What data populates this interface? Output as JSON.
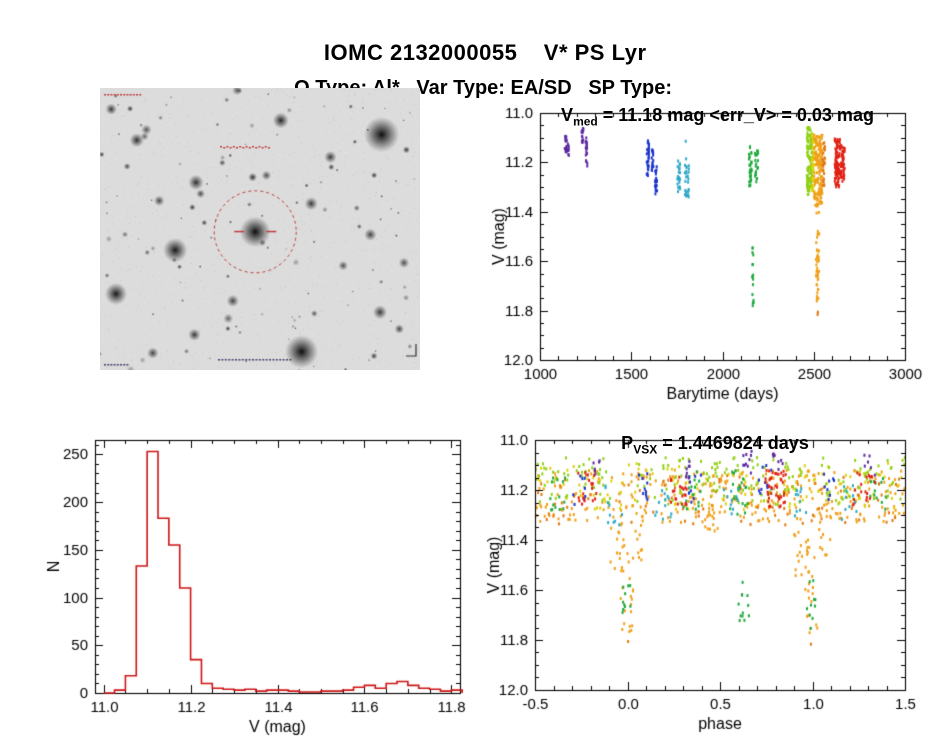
{
  "header": {
    "title": "IOMC 2132000055    V* PS Lyr",
    "subtitle": "O Type: Al*   Var Type: EA/SD   SP Type:"
  },
  "starfield": {
    "description": "Inverted grayscale finding-chart image with target star circled",
    "target_circle_color": "#c23b3b"
  },
  "chart_data": [
    {
      "id": "lightcurve",
      "type": "scatter",
      "title": {
        "pre": "V",
        "sub": "med",
        "post": " = 11.18 mag <err_V> = 0.03 mag"
      },
      "xlabel": "Barytime (days)",
      "ylabel": "V (mag)",
      "xlim": [
        1000,
        3000
      ],
      "ylim": [
        11.0,
        12.0
      ],
      "y_axis_inverted": true,
      "xticks": [
        1000,
        1500,
        2000,
        2500,
        3000
      ],
      "xtick_labels": [
        "1000",
        "1500",
        "2000",
        "2500",
        "3000"
      ],
      "yticks": [
        11.0,
        11.2,
        11.4,
        11.6,
        11.8,
        12.0
      ],
      "ytick_labels": [
        "11.0",
        "11.2",
        "11.4",
        "11.6",
        "11.8",
        "12.0"
      ],
      "clusters": [
        {
          "color": "#5c28a0",
          "x": [
            1135,
            1147
          ],
          "y": [
            11.09,
            11.16
          ],
          "n": 16
        },
        {
          "color": "#5c28a0",
          "x": [
            1152,
            1158
          ],
          "y": [
            11.12,
            11.18
          ],
          "n": 8
        },
        {
          "color": "#5c28a0",
          "x": [
            1228,
            1238
          ],
          "y": [
            11.05,
            11.12
          ],
          "n": 14
        },
        {
          "color": "#5c28a0",
          "x": [
            1250,
            1260
          ],
          "y": [
            11.1,
            11.22
          ],
          "n": 18
        },
        {
          "color": "#1c34cc",
          "x": [
            1585,
            1597
          ],
          "y": [
            11.11,
            11.26
          ],
          "n": 30
        },
        {
          "color": "#1c34cc",
          "x": [
            1612,
            1622
          ],
          "y": [
            11.15,
            11.25
          ],
          "n": 16
        },
        {
          "color": "#1c34cc",
          "x": [
            1630,
            1642
          ],
          "y": [
            11.21,
            11.33
          ],
          "n": 20
        },
        {
          "color": "#2fa8c8",
          "x": [
            1752,
            1768
          ],
          "y": [
            11.19,
            11.32
          ],
          "n": 24
        },
        {
          "color": "#2fa8c8",
          "x": [
            1793,
            1803
          ],
          "y": [
            11.09,
            11.36
          ],
          "n": 16
        },
        {
          "color": "#2fa8c8",
          "x": [
            1808,
            1818
          ],
          "y": [
            11.21,
            11.34
          ],
          "n": 12
        },
        {
          "color": "#1fa83c",
          "x": [
            2145,
            2160
          ],
          "y": [
            11.13,
            11.3
          ],
          "n": 30
        },
        {
          "color": "#1fa83c",
          "x": [
            2163,
            2171
          ],
          "y": [
            11.54,
            11.8
          ],
          "n": 16
        },
        {
          "color": "#1fa83c",
          "x": [
            2178,
            2195
          ],
          "y": [
            11.15,
            11.28
          ],
          "n": 20
        },
        {
          "color": "#8fd014",
          "x": [
            2462,
            2478
          ],
          "y": [
            11.05,
            11.33
          ],
          "n": 70
        },
        {
          "color": "#8fd014",
          "x": [
            2480,
            2492
          ],
          "y": [
            11.07,
            11.3
          ],
          "n": 55
        },
        {
          "color": "#ddd00e",
          "x": [
            2490,
            2502
          ],
          "y": [
            11.08,
            11.32
          ],
          "n": 45
        },
        {
          "color": "#f0a018",
          "x": [
            2502,
            2548
          ],
          "y": [
            11.09,
            11.38
          ],
          "n": 150
        },
        {
          "color": "#f0a018",
          "x": [
            2512,
            2530
          ],
          "y": [
            11.38,
            11.7
          ],
          "n": 32
        },
        {
          "color": "#f0a018",
          "x": [
            2516,
            2526
          ],
          "y": [
            11.7,
            11.8
          ],
          "n": 8
        },
        {
          "color": "#e07812",
          "x": [
            2548,
            2562
          ],
          "y": [
            11.11,
            11.3
          ],
          "n": 28
        },
        {
          "color": "#e07812",
          "x": [
            2520,
            2523
          ],
          "y": [
            11.8,
            11.83
          ],
          "n": 2
        },
        {
          "color": "#e02014",
          "x": [
            2615,
            2645
          ],
          "y": [
            11.1,
            11.3
          ],
          "n": 80
        },
        {
          "color": "#e02014",
          "x": [
            2648,
            2670
          ],
          "y": [
            11.13,
            11.28
          ],
          "n": 45
        }
      ]
    },
    {
      "id": "histogram",
      "type": "bar",
      "xlabel": "V (mag)",
      "ylabel": "N",
      "xlim": [
        10.98,
        11.82
      ],
      "ylim": [
        0,
        265
      ],
      "xticks": [
        11.0,
        11.2,
        11.4,
        11.6,
        11.8
      ],
      "xtick_labels": [
        "11.0",
        "11.2",
        "11.4",
        "11.6",
        "11.8"
      ],
      "yticks": [
        0,
        50,
        100,
        150,
        200,
        250
      ],
      "ytick_labels": [
        "0",
        "50",
        "100",
        "150",
        "200",
        "250"
      ],
      "bin_start": 11.0,
      "bin_width": 0.025,
      "counts": [
        0,
        3,
        18,
        133,
        253,
        183,
        155,
        110,
        35,
        10,
        5,
        4,
        3,
        4,
        2,
        3,
        3,
        2,
        1,
        1,
        2,
        2,
        3,
        6,
        8,
        5,
        10,
        12,
        8,
        5,
        4,
        2,
        3
      ],
      "color": "#cc1414"
    },
    {
      "id": "phase",
      "type": "scatter",
      "title": {
        "pre": "P",
        "sub": "VSX",
        "post": " = 1.4469824 days"
      },
      "xlabel": "phase",
      "ylabel": "V (mag)",
      "xlim": [
        -0.5,
        1.5
      ],
      "ylim": [
        11.0,
        12.0
      ],
      "y_axis_inverted": true,
      "xticks": [
        -0.5,
        0.0,
        0.5,
        1.0,
        1.5
      ],
      "xtick_labels": [
        "-0.5",
        "0.0",
        "0.5",
        "1.0",
        "1.5"
      ],
      "yticks": [
        11.0,
        11.2,
        11.4,
        11.6,
        11.8,
        12.0
      ],
      "ytick_labels": [
        "11.0",
        "11.2",
        "11.4",
        "11.6",
        "11.8",
        "12.0"
      ],
      "clusters": [
        {
          "color": "#f0a018",
          "x": [
            -0.5,
            1.5
          ],
          "y": [
            11.12,
            11.33
          ],
          "n": 280
        },
        {
          "color": "#e07812",
          "x": [
            -0.5,
            1.5
          ],
          "y": [
            11.14,
            11.34
          ],
          "n": 90
        },
        {
          "color": "#ddd00e",
          "x": [
            -0.5,
            1.5
          ],
          "y": [
            11.09,
            11.28
          ],
          "n": 130
        },
        {
          "color": "#8fd014",
          "x": [
            -0.5,
            -0.05
          ],
          "y": [
            11.07,
            11.26
          ],
          "n": 45
        },
        {
          "color": "#8fd014",
          "x": [
            0.05,
            0.5
          ],
          "y": [
            11.07,
            11.26
          ],
          "n": 50
        },
        {
          "color": "#8fd014",
          "x": [
            0.5,
            0.95
          ],
          "y": [
            11.07,
            11.26
          ],
          "n": 50
        },
        {
          "color": "#8fd014",
          "x": [
            1.05,
            1.5
          ],
          "y": [
            11.07,
            11.26
          ],
          "n": 45
        },
        {
          "color": "#f0a018",
          "x": [
            -0.1,
            -0.02
          ],
          "y": [
            11.3,
            11.55
          ],
          "n": 16
        },
        {
          "color": "#f0a018",
          "x": [
            -0.04,
            0.03
          ],
          "y": [
            11.42,
            11.8
          ],
          "n": 20
        },
        {
          "color": "#f0a018",
          "x": [
            0.03,
            0.1
          ],
          "y": [
            11.3,
            11.48
          ],
          "n": 12
        },
        {
          "color": "#f0a018",
          "x": [
            0.9,
            0.98
          ],
          "y": [
            11.3,
            11.55
          ],
          "n": 16
        },
        {
          "color": "#f0a018",
          "x": [
            0.96,
            1.03
          ],
          "y": [
            11.42,
            11.8
          ],
          "n": 20
        },
        {
          "color": "#f0a018",
          "x": [
            1.03,
            1.1
          ],
          "y": [
            11.3,
            11.48
          ],
          "n": 12
        },
        {
          "color": "#f0a018",
          "x": [
            0.42,
            0.52
          ],
          "y": [
            11.26,
            11.38
          ],
          "n": 14
        },
        {
          "color": "#1fa83c",
          "x": [
            -0.42,
            -0.33
          ],
          "y": [
            11.13,
            11.28
          ],
          "n": 14
        },
        {
          "color": "#1fa83c",
          "x": [
            0.3,
            0.4
          ],
          "y": [
            11.12,
            11.28
          ],
          "n": 16
        },
        {
          "color": "#1fa83c",
          "x": [
            0.55,
            0.66
          ],
          "y": [
            11.12,
            11.3
          ],
          "n": 18
        },
        {
          "color": "#1fa83c",
          "x": [
            0.6,
            0.66
          ],
          "y": [
            11.45,
            11.76
          ],
          "n": 12
        },
        {
          "color": "#1fa83c",
          "x": [
            -0.03,
            0.02
          ],
          "y": [
            11.55,
            11.78
          ],
          "n": 10
        },
        {
          "color": "#1fa83c",
          "x": [
            0.97,
            1.02
          ],
          "y": [
            11.55,
            11.78
          ],
          "n": 10
        },
        {
          "color": "#1fa83c",
          "x": [
            1.3,
            1.4
          ],
          "y": [
            11.12,
            11.28
          ],
          "n": 12
        },
        {
          "color": "#2fa8c8",
          "x": [
            -0.12,
            -0.02
          ],
          "y": [
            11.18,
            11.34
          ],
          "n": 10
        },
        {
          "color": "#2fa8c8",
          "x": [
            0.15,
            0.25
          ],
          "y": [
            11.18,
            11.32
          ],
          "n": 12
        },
        {
          "color": "#2fa8c8",
          "x": [
            0.52,
            0.6
          ],
          "y": [
            11.16,
            11.3
          ],
          "n": 10
        },
        {
          "color": "#2fa8c8",
          "x": [
            0.88,
            0.98
          ],
          "y": [
            11.18,
            11.34
          ],
          "n": 10
        },
        {
          "color": "#2fa8c8",
          "x": [
            1.15,
            1.25
          ],
          "y": [
            11.18,
            11.32
          ],
          "n": 10
        },
        {
          "color": "#1c34cc",
          "x": [
            0.05,
            0.12
          ],
          "y": [
            11.12,
            11.24
          ],
          "n": 10
        },
        {
          "color": "#1c34cc",
          "x": [
            0.33,
            0.4
          ],
          "y": [
            11.14,
            11.26
          ],
          "n": 8
        },
        {
          "color": "#1c34cc",
          "x": [
            0.7,
            0.78
          ],
          "y": [
            11.1,
            11.22
          ],
          "n": 12
        },
        {
          "color": "#1c34cc",
          "x": [
            1.05,
            1.12
          ],
          "y": [
            11.12,
            11.24
          ],
          "n": 8
        },
        {
          "color": "#1c34cc",
          "x": [
            -0.3,
            -0.22
          ],
          "y": [
            11.14,
            11.26
          ],
          "n": 8
        },
        {
          "color": "#5c28a0",
          "x": [
            0.62,
            0.68
          ],
          "y": [
            11.04,
            11.14
          ],
          "n": 10
        },
        {
          "color": "#5c28a0",
          "x": [
            0.3,
            0.36
          ],
          "y": [
            11.07,
            11.16
          ],
          "n": 8
        },
        {
          "color": "#5c28a0",
          "x": [
            1.28,
            1.34
          ],
          "y": [
            11.06,
            11.15
          ],
          "n": 6
        },
        {
          "color": "#5c28a0",
          "x": [
            -0.2,
            -0.14
          ],
          "y": [
            11.08,
            11.16
          ],
          "n": 6
        },
        {
          "color": "#5c28a0",
          "x": [
            0.78,
            0.84
          ],
          "y": [
            11.05,
            11.13
          ],
          "n": 8
        },
        {
          "color": "#e02014",
          "x": [
            0.74,
            0.86
          ],
          "y": [
            11.12,
            11.27
          ],
          "n": 40
        },
        {
          "color": "#e02014",
          "x": [
            0.22,
            0.32
          ],
          "y": [
            11.13,
            11.26
          ],
          "n": 22
        },
        {
          "color": "#e02014",
          "x": [
            -0.28,
            -0.16
          ],
          "y": [
            11.13,
            11.26
          ],
          "n": 18
        },
        {
          "color": "#e02014",
          "x": [
            1.22,
            1.34
          ],
          "y": [
            11.13,
            11.26
          ],
          "n": 18
        },
        {
          "color": "#e07812",
          "x": [
            0.0,
            0.01
          ],
          "y": [
            11.8,
            11.83
          ],
          "n": 1
        },
        {
          "color": "#e07812",
          "x": [
            0.99,
            1.0
          ],
          "y": [
            11.8,
            11.83
          ],
          "n": 1
        }
      ]
    }
  ]
}
